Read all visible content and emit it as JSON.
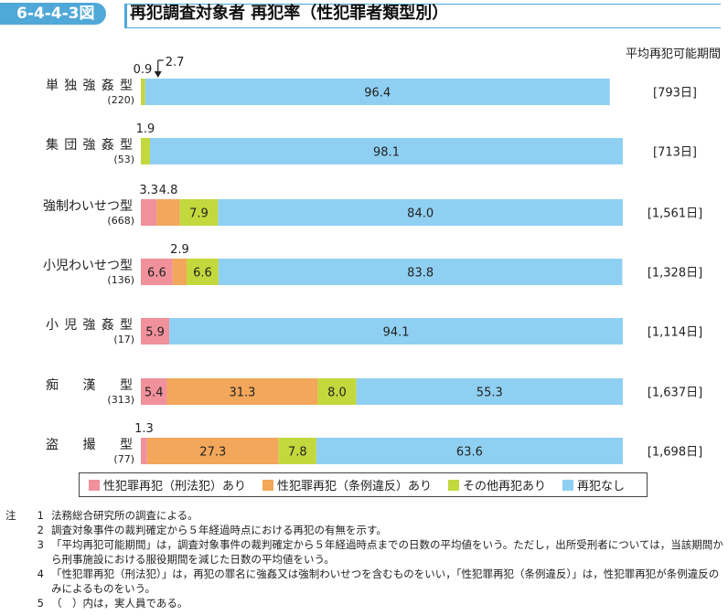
{
  "header": {
    "figure_number": "6-4-4-3図",
    "title": "再犯調査対象者 再犯率（性犯罪者類型別）",
    "column_header": "平均再犯可能期間"
  },
  "colors": {
    "sexual_penal": "#f0919b",
    "sexual_ordinance": "#f2a75a",
    "other": "#c3d83c",
    "none": "#8fd0f2",
    "accent": "#4fa8d8"
  },
  "chart_data": {
    "type": "bar",
    "orientation": "horizontal",
    "stacked": true,
    "percent_scale": true,
    "xlim": [
      0,
      100
    ],
    "categories": [
      "単独強姦型",
      "集団強姦型",
      "強制わいせつ型",
      "小児わいせつ型",
      "小児強姦型",
      "痴漢型",
      "盗撮型"
    ],
    "category_counts": [
      "(220)",
      "(53)",
      "(668)",
      "(136)",
      "(17)",
      "(313)",
      "(77)"
    ],
    "period_labels": [
      "[793日]",
      "[713日]",
      "[1,561日]",
      "[1,328日]",
      "[1,114日]",
      "[1,637日]",
      "[1,698日]"
    ],
    "series": [
      {
        "name": "性犯罪再犯（刑法犯）あり",
        "values": [
          0,
          0,
          3.3,
          6.6,
          5.9,
          5.4,
          1.3
        ]
      },
      {
        "name": "性犯罪再犯（条例違反）あり",
        "values": [
          0,
          0,
          4.8,
          2.9,
          0,
          31.3,
          27.3
        ]
      },
      {
        "name": "その他再犯あり",
        "values": [
          0.9,
          1.9,
          7.9,
          6.6,
          0,
          8.0,
          7.8
        ]
      },
      {
        "name": "再犯なし",
        "values": [
          96.4,
          98.1,
          84.0,
          83.8,
          94.1,
          55.3,
          63.6
        ]
      }
    ],
    "value_labels": [
      [
        "",
        "",
        "0.9",
        "96.4"
      ],
      [
        "",
        "",
        "1.9",
        "98.1"
      ],
      [
        "3.3",
        "4.8",
        "7.9",
        "84.0"
      ],
      [
        "6.6",
        "2.9",
        "6.6",
        "83.8"
      ],
      [
        "5.9",
        "",
        "",
        "94.1"
      ],
      [
        "5.4",
        "31.3",
        "8.0",
        "55.3"
      ],
      [
        "1.3",
        "27.3",
        "7.8",
        "63.6"
      ]
    ],
    "annotation": "2.7"
  },
  "notes": {
    "head": "注",
    "items": [
      {
        "num": "1",
        "text": "法務総合研究所の調査による。"
      },
      {
        "num": "2",
        "text": "調査対象事件の裁判確定から５年経過時点における再犯の有無を示す。"
      },
      {
        "num": "3",
        "text": "「平均再犯可能期間」は，調査対象事件の裁判確定から５年経過時点までの日数の平均値をいう。ただし，出所受刑者については，当該期間から刑事施設における服役期間を減じた日数の平均値をいう。"
      },
      {
        "num": "4",
        "text": "「性犯罪再犯（刑法犯）」は，再犯の罪名に強姦又は強制わいせつを含むものをいい，「性犯罪再犯（条例違反）」は，性犯罪再犯が条例違反のみによるものをいう。"
      },
      {
        "num": "5",
        "text": "（　）内は，実人員である。"
      }
    ]
  }
}
